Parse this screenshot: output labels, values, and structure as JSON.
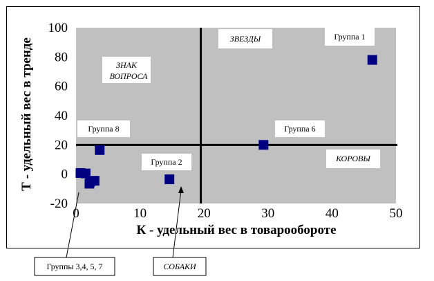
{
  "chart_data": {
    "type": "scatter",
    "xlabel": "К - удельный вес в товарообороте",
    "ylabel": "Т - удельный вес в тренде",
    "xlim": [
      0,
      50
    ],
    "ylim": [
      -20,
      100
    ],
    "xticks": [
      "0",
      "10",
      "20",
      "30",
      "40",
      "50"
    ],
    "yticks": [
      "-20",
      "0",
      "20",
      "40",
      "60",
      "80",
      "100"
    ],
    "grid": false,
    "plot_background": "#c0c0c0",
    "point_color": "#000080",
    "quadrant_lines": {
      "x": 19.5,
      "y": 20
    },
    "points": [
      {
        "x": 46.3,
        "y": 78
      },
      {
        "x": 29.3,
        "y": 20
      },
      {
        "x": 14.6,
        "y": -3.5
      },
      {
        "x": 3.7,
        "y": 16.5
      },
      {
        "x": 0.7,
        "y": 0.8
      },
      {
        "x": 1.5,
        "y": 0.5
      },
      {
        "x": 2.2,
        "y": -5
      },
      {
        "x": 2.9,
        "y": -4.5
      },
      {
        "x": 2.1,
        "y": -6.5
      }
    ],
    "annotations": {
      "quadrants": [
        "ЗВЕЗДЫ",
        "ЗНАК ВОПРОСА",
        "КОРОВЫ",
        "СОБАКИ"
      ],
      "groups": [
        "Группа 1",
        "Группа 6",
        "Группа 2",
        "Группа 8",
        "Группы 3,4, 5, 7"
      ]
    }
  }
}
